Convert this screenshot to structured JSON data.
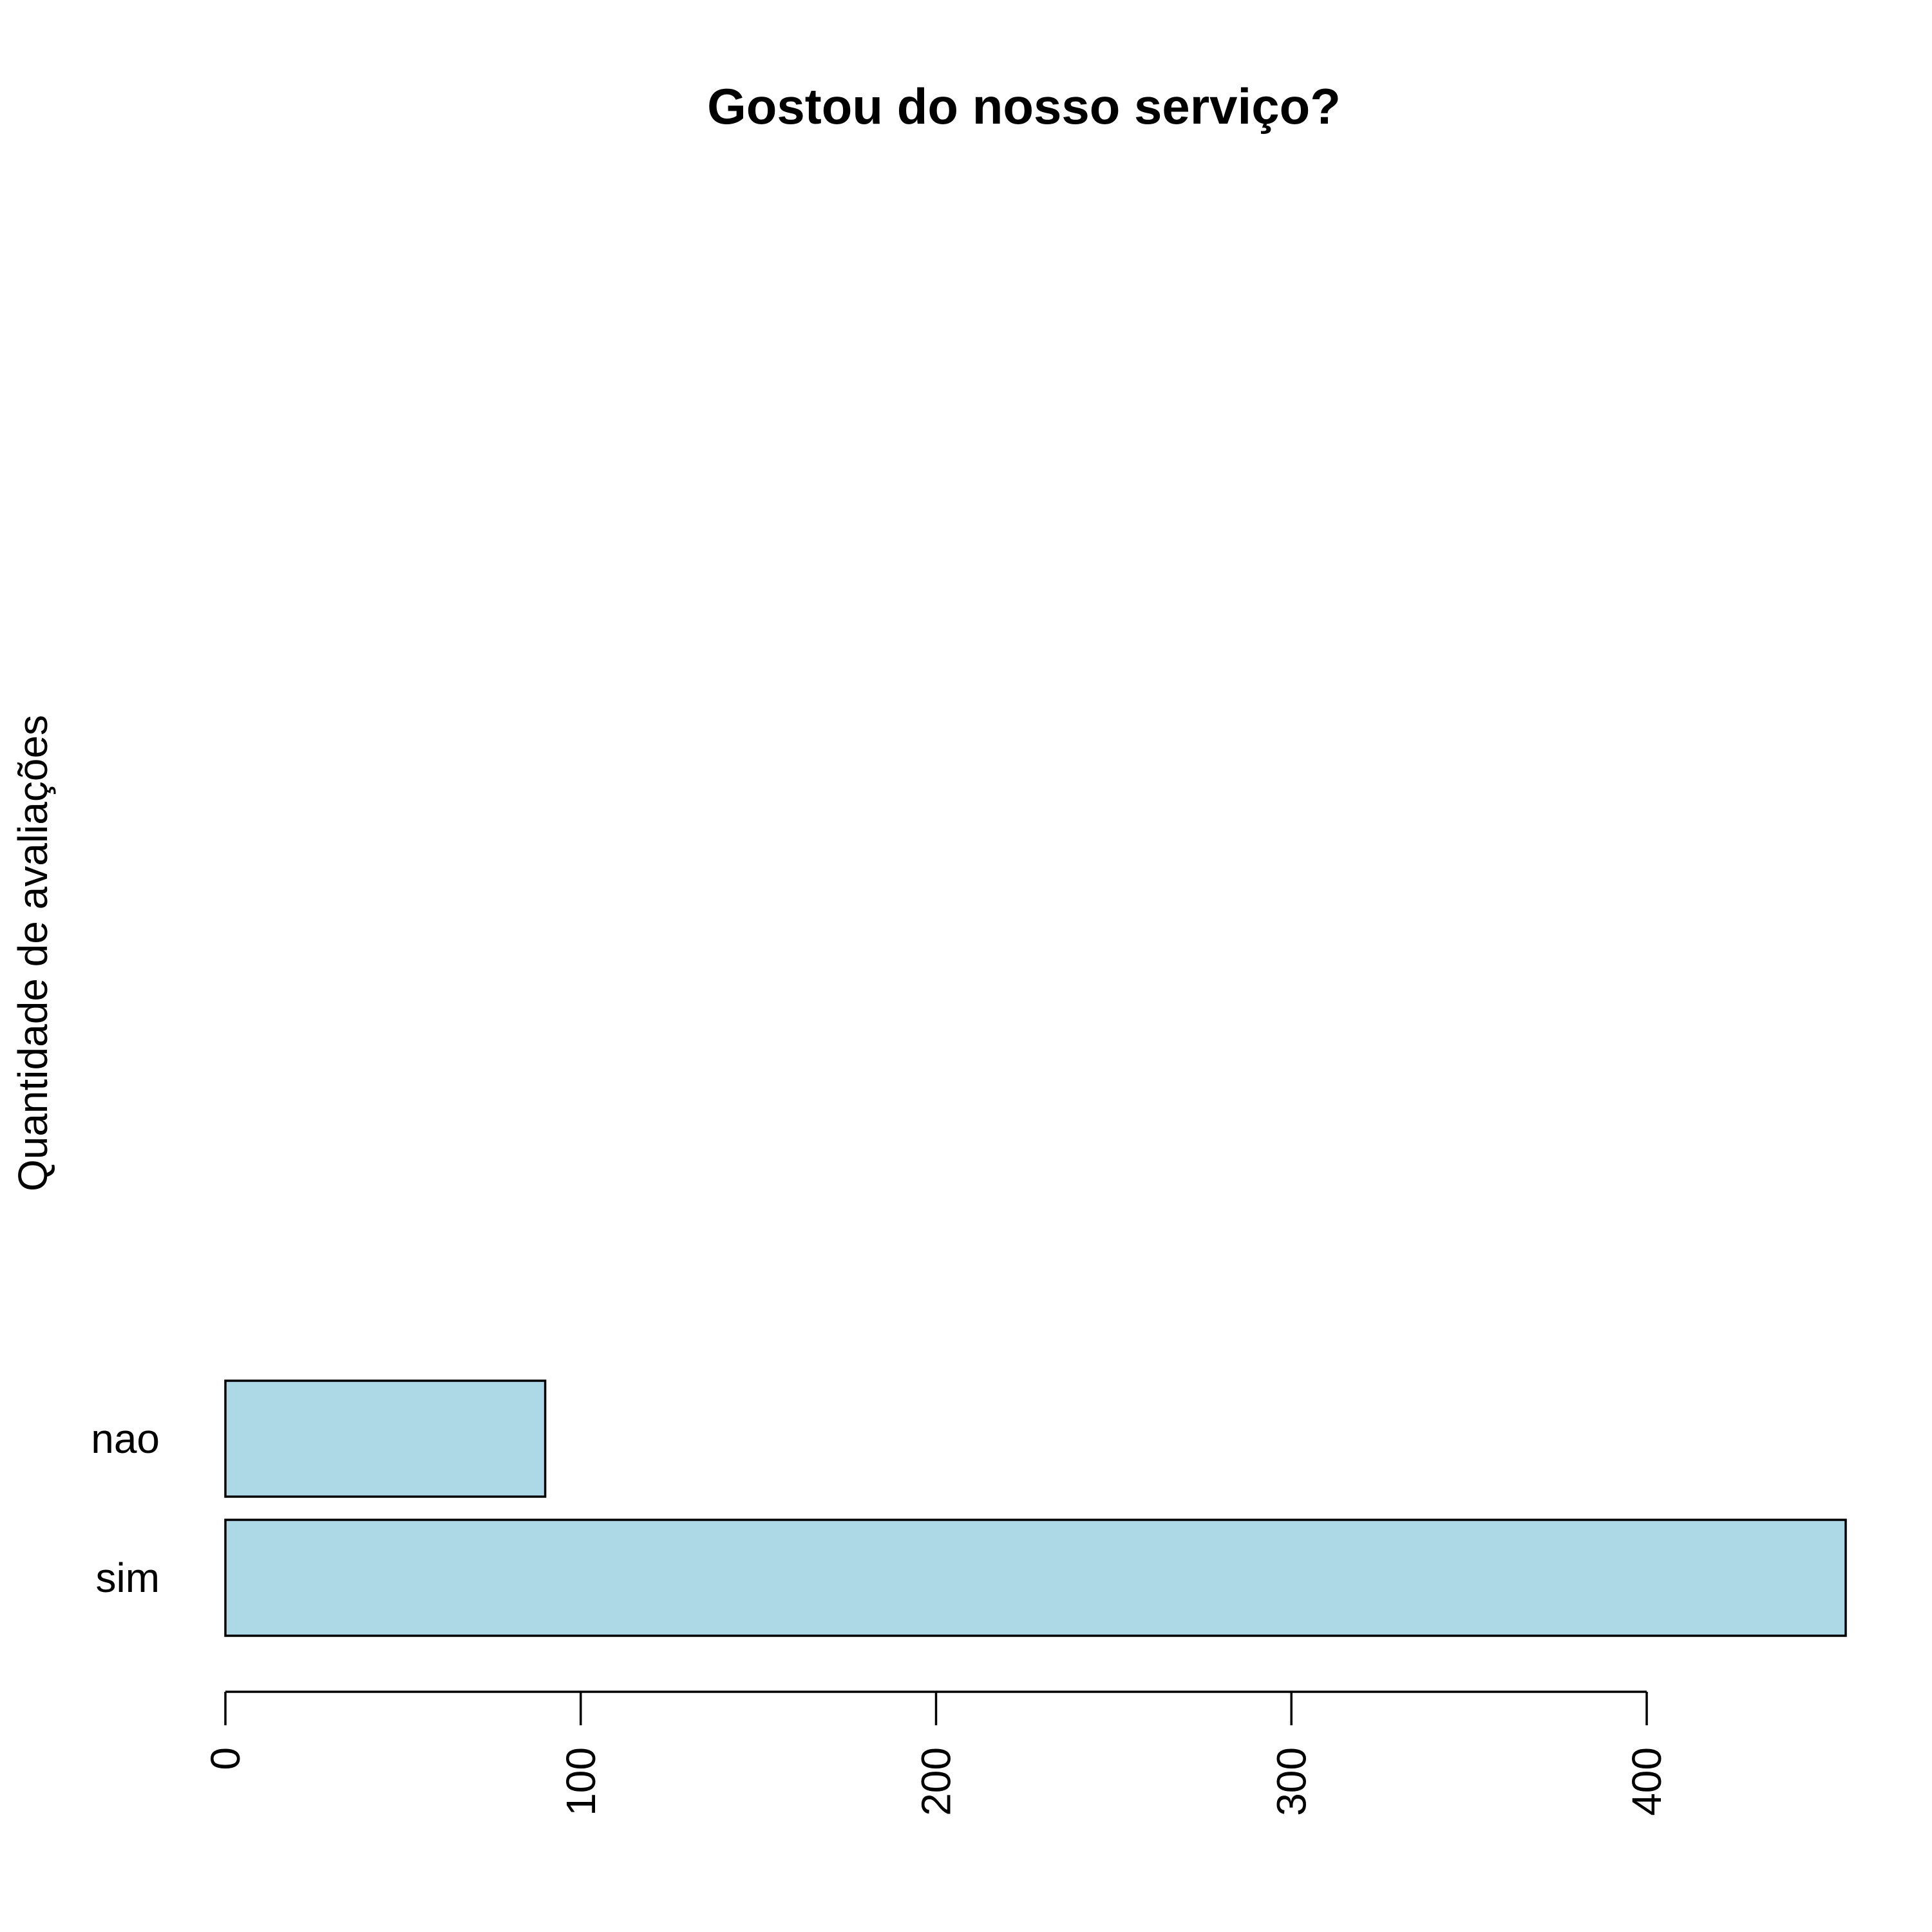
{
  "chart_data": {
    "type": "bar",
    "orientation": "horizontal",
    "title": "Gostou do nosso serviço?",
    "xlabel": "",
    "ylabel": "Quantidade de avaliações",
    "categories": [
      "sim",
      "nao"
    ],
    "values": [
      456,
      90
    ],
    "xlim": [
      0,
      456
    ],
    "x_ticks": [
      0,
      100,
      200,
      300,
      400
    ],
    "x_tick_labels": [
      "0",
      "100",
      "200",
      "300",
      "400"
    ],
    "grid": false,
    "legend": "none",
    "bar_fill": "#add8e6",
    "bar_stroke": "#000000"
  }
}
